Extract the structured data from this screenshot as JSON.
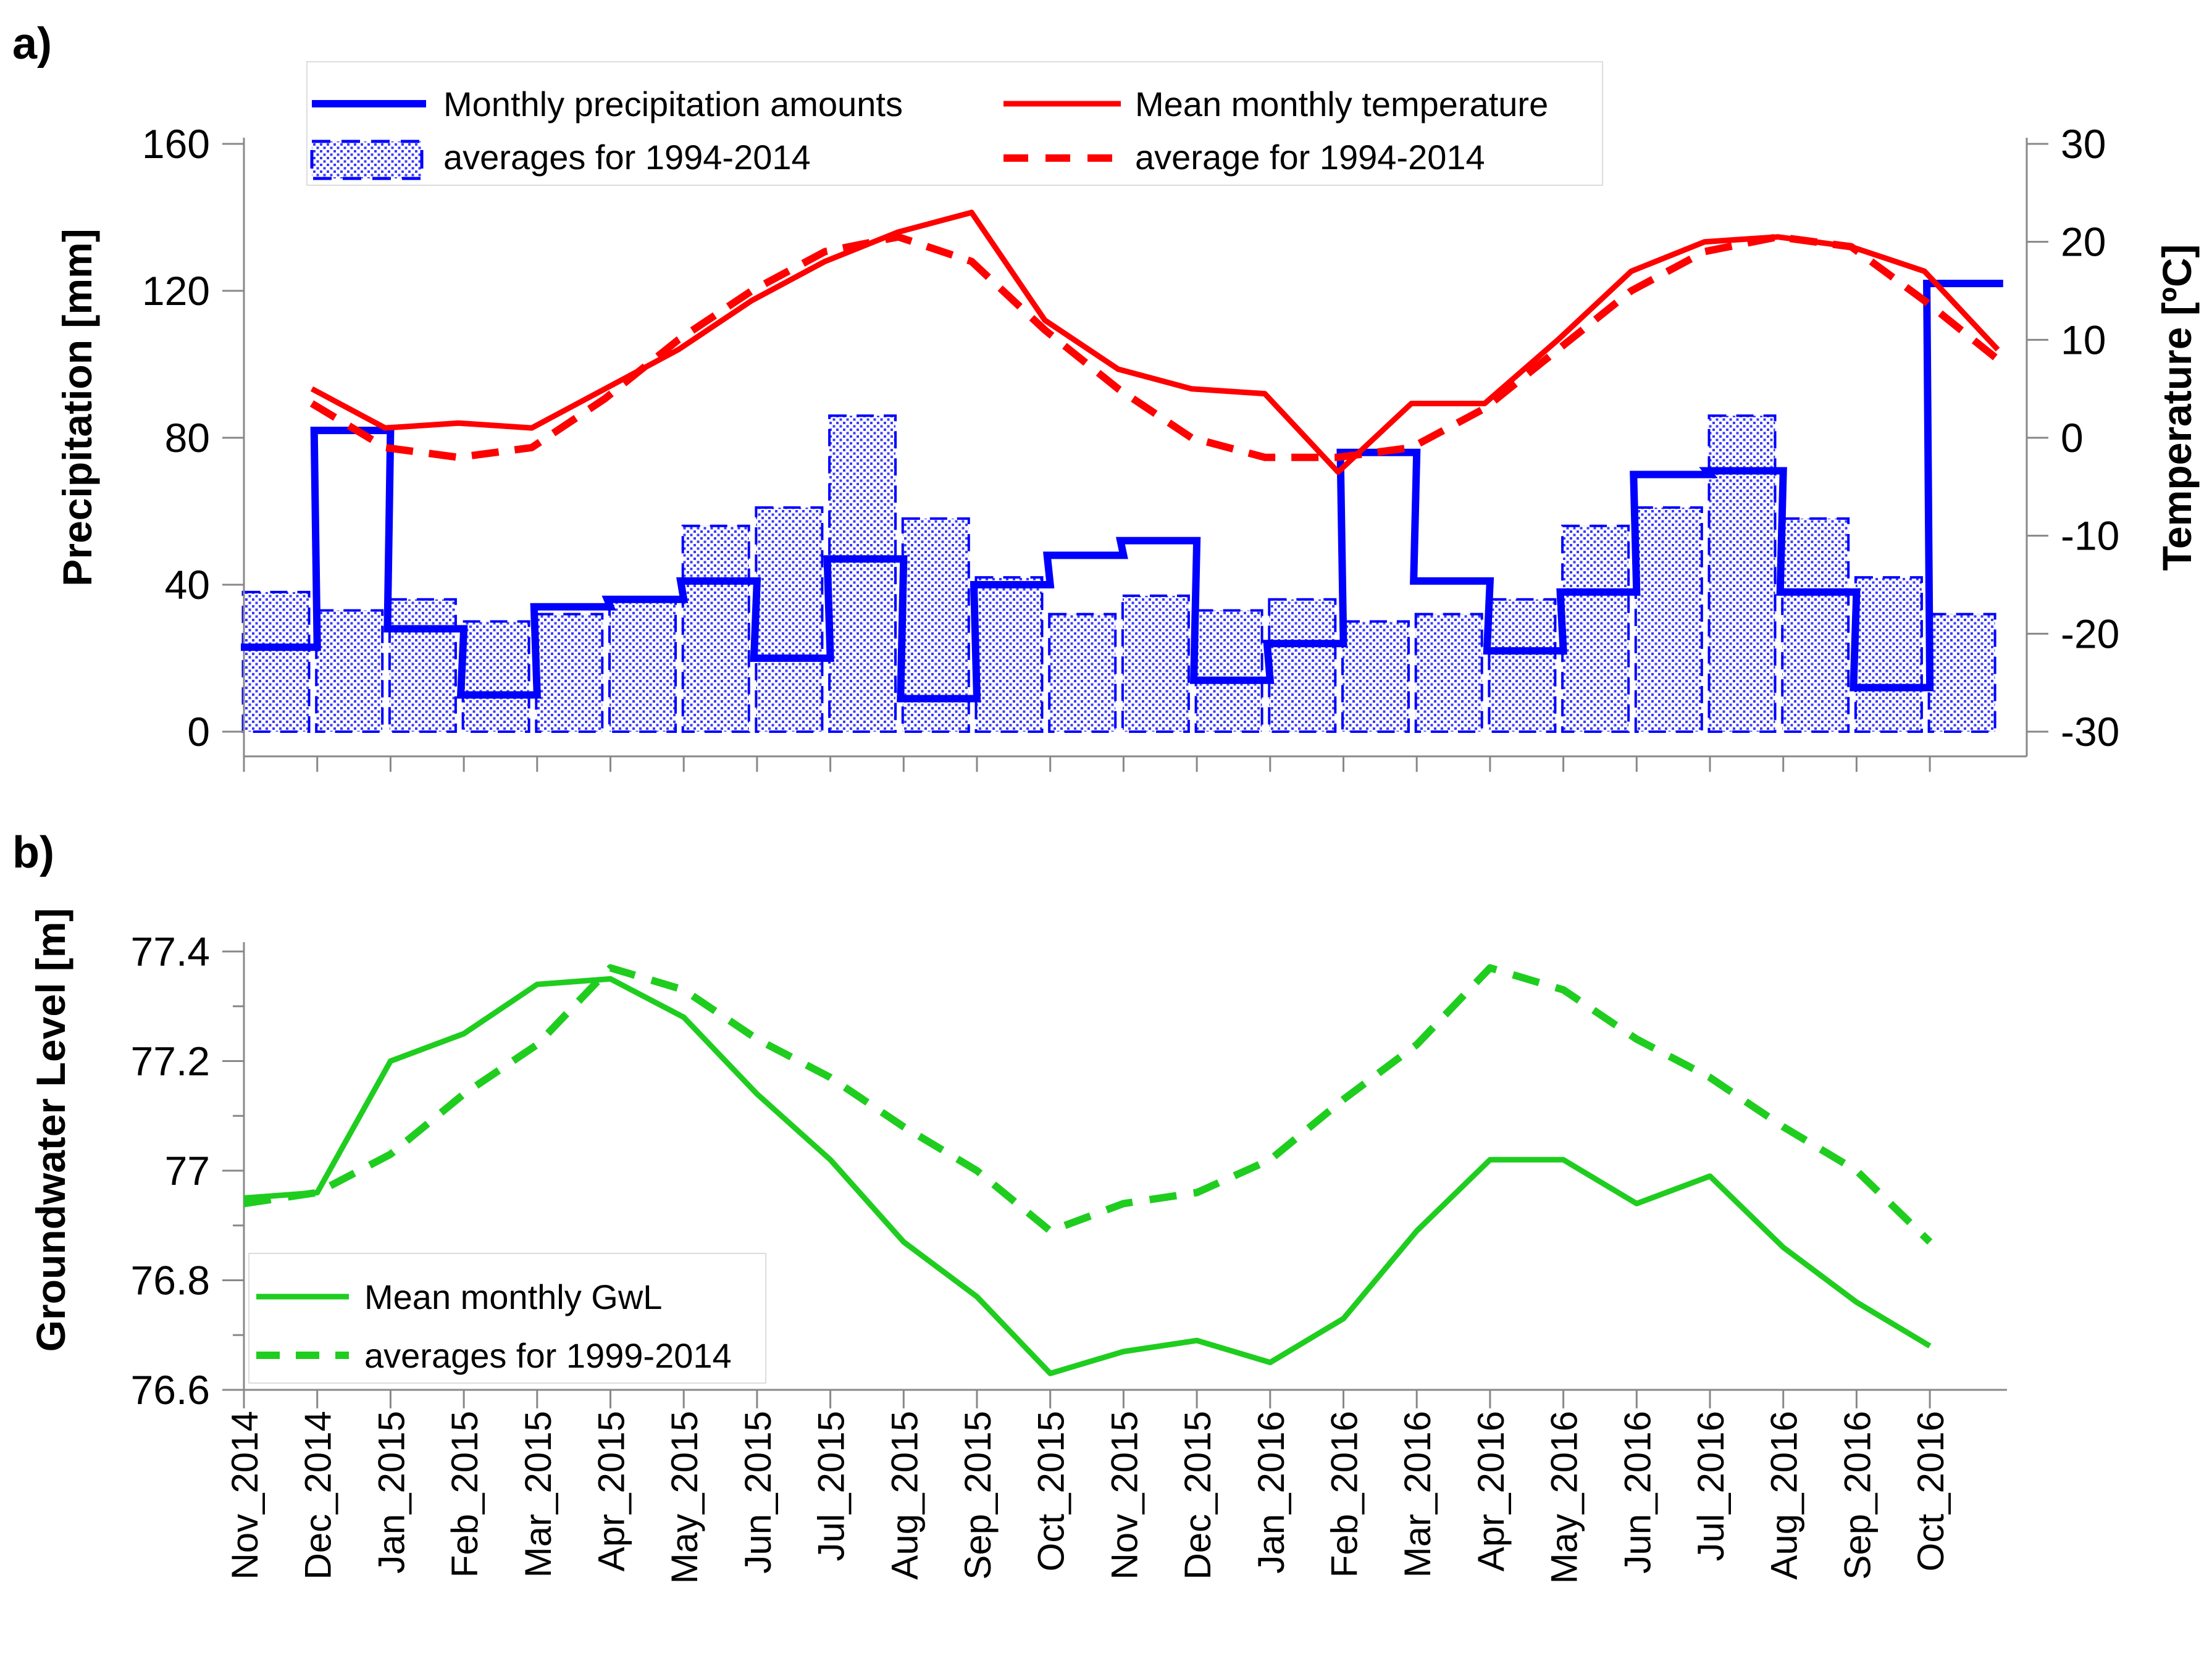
{
  "panel_a_label": "a)",
  "panel_b_label": "b)",
  "colors": {
    "precip": "#0000ff",
    "precip_hatch": "#3a3aff",
    "temp": "#ff0000",
    "gwl": "#1fcd1f",
    "axis": "#000000",
    "tick": "#888888"
  },
  "x_labels": [
    "Nov_2014",
    "Dec_2014",
    "Jan_2015",
    "Feb_2015",
    "Mar_2015",
    "Apr_2015",
    "May_2015",
    "Jun_2015",
    "Jul_2015",
    "Aug_2015",
    "Sep_2015",
    "Oct_2015",
    "Nov_2015",
    "Dec_2015",
    "Jan_2016",
    "Feb_2016",
    "Mar_2016",
    "Apr_2016",
    "May_2016",
    "Jun_2016",
    "Jul_2016",
    "Aug_2016",
    "Sep_2016",
    "Oct_2016"
  ],
  "chart_data": [
    {
      "id": "a",
      "type": "bar",
      "title": "",
      "xlabel": "",
      "ylabel": "Precipitation [mm]",
      "y2label": "Temperature [ºC]",
      "ylim": [
        0,
        160
      ],
      "y2lim": [
        -30,
        30
      ],
      "yticks": [
        "0",
        "40",
        "80",
        "120",
        "160"
      ],
      "y2ticks": [
        "-30",
        "-20",
        "-10",
        "0",
        "10",
        "20",
        "30"
      ],
      "legend": {
        "precip": "Monthly precipitation amounts",
        "precip_avg": "averages for 1994-2014",
        "temp": "Mean monthly temperature",
        "temp_avg": "average for 1994-2014"
      },
      "series": [
        {
          "name": "Monthly precipitation amounts",
          "type": "step",
          "values": [
            23,
            82,
            28,
            10,
            34,
            36,
            41,
            20,
            47,
            9,
            40,
            48,
            52,
            14,
            24,
            76,
            41,
            22,
            38,
            70,
            71,
            38,
            12,
            122
          ]
        },
        {
          "name": "averages for 1994-2014",
          "type": "bar",
          "values": [
            38,
            33,
            36,
            30,
            32,
            36,
            56,
            61,
            86,
            58,
            42,
            32,
            37,
            33,
            36,
            30,
            32,
            36,
            56,
            61,
            86,
            58,
            42,
            32
          ]
        },
        {
          "name": "Mean monthly temperature",
          "type": "line",
          "axis": "right",
          "values": [
            5,
            1,
            1.5,
            1,
            5,
            9,
            14,
            18,
            21,
            23,
            12,
            7,
            5,
            4.5,
            -3.5,
            3.5,
            3.5,
            10,
            17,
            20,
            20.5,
            19.5,
            17,
            9
          ]
        },
        {
          "name": "average for 1994-2014",
          "type": "dashed",
          "axis": "right",
          "values": [
            3.5,
            -1,
            -2,
            -1,
            4,
            10,
            15,
            19,
            20.5,
            18,
            11,
            5,
            0,
            -2,
            -2,
            -1,
            3,
            9,
            15,
            19,
            20.5,
            19.5,
            14,
            8
          ]
        }
      ]
    },
    {
      "id": "b",
      "type": "line",
      "title": "",
      "xlabel": "",
      "ylabel": "Groundwater Level [m]",
      "ylim": [
        76.6,
        77.4
      ],
      "yticks": [
        "76.6",
        "76.8",
        "77",
        "77.2",
        "77.4"
      ],
      "legend": {
        "gwl": "Mean monthly GwL",
        "gwl_avg": "averages for 1999-2014"
      },
      "series": [
        {
          "name": "Mean monthly GwL",
          "type": "line",
          "values": [
            76.95,
            76.96,
            77.2,
            77.25,
            77.34,
            77.35,
            77.28,
            77.14,
            77.02,
            76.87,
            76.77,
            76.63,
            76.67,
            76.69,
            76.65,
            76.73,
            76.89,
            77.02,
            77.02,
            76.94,
            76.99,
            76.86,
            76.76,
            76.68
          ]
        },
        {
          "name": "averages for 1999-2014",
          "type": "dashed",
          "values": [
            76.94,
            76.96,
            77.03,
            77.14,
            77.23,
            77.37,
            77.33,
            77.24,
            77.17,
            77.08,
            77.0,
            76.89,
            76.94,
            76.96,
            77.02,
            77.13,
            77.23,
            77.37,
            77.33,
            77.24,
            77.17,
            77.08,
            77.0,
            76.87
          ]
        }
      ]
    }
  ]
}
